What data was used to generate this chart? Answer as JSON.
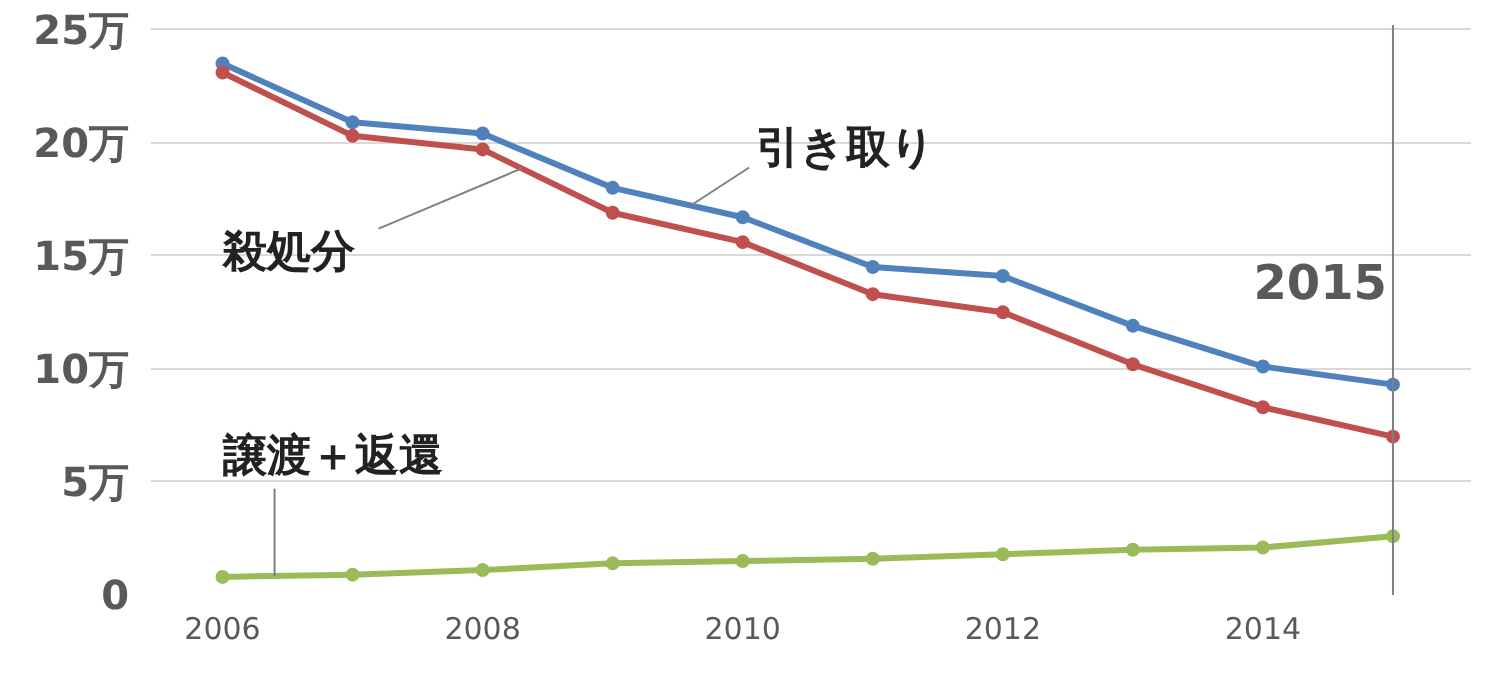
{
  "chart_data": {
    "type": "line",
    "x": [
      2006,
      2007,
      2008,
      2009,
      2010,
      2011,
      2012,
      2013,
      2014,
      2015
    ],
    "series": [
      {
        "name": "引き取り",
        "color": "#4f81bd",
        "values": [
          23.5,
          20.9,
          20.4,
          18.0,
          16.7,
          14.5,
          14.1,
          11.9,
          10.1,
          9.3
        ]
      },
      {
        "name": "殺処分",
        "color": "#c0504d",
        "values": [
          23.1,
          20.3,
          19.7,
          16.9,
          15.6,
          13.3,
          12.5,
          10.2,
          8.3,
          7.0
        ]
      },
      {
        "name": "譲渡＋返還",
        "color": "#9bbb59",
        "values": [
          0.8,
          0.9,
          1.1,
          1.4,
          1.5,
          1.6,
          1.8,
          2.0,
          2.1,
          2.6
        ]
      }
    ],
    "xlim": [
      2005.45,
      2015.6
    ],
    "xticks": [
      2006,
      2008,
      2010,
      2012,
      2014
    ],
    "ylim": [
      0,
      25.2
    ],
    "yticks": [
      0,
      {
        "value": 5,
        "label": "5万"
      },
      {
        "value": 10,
        "label": "10万"
      },
      {
        "value": 15,
        "label": "15万"
      },
      {
        "value": 20,
        "label": "20万"
      },
      {
        "value": 25,
        "label": "25万"
      }
    ],
    "ref_lines": [
      {
        "axis": "x",
        "value": 2015,
        "label": "2015",
        "color": "#808080"
      }
    ],
    "grid": "y",
    "marker": "circle",
    "line_style": "solid"
  }
}
